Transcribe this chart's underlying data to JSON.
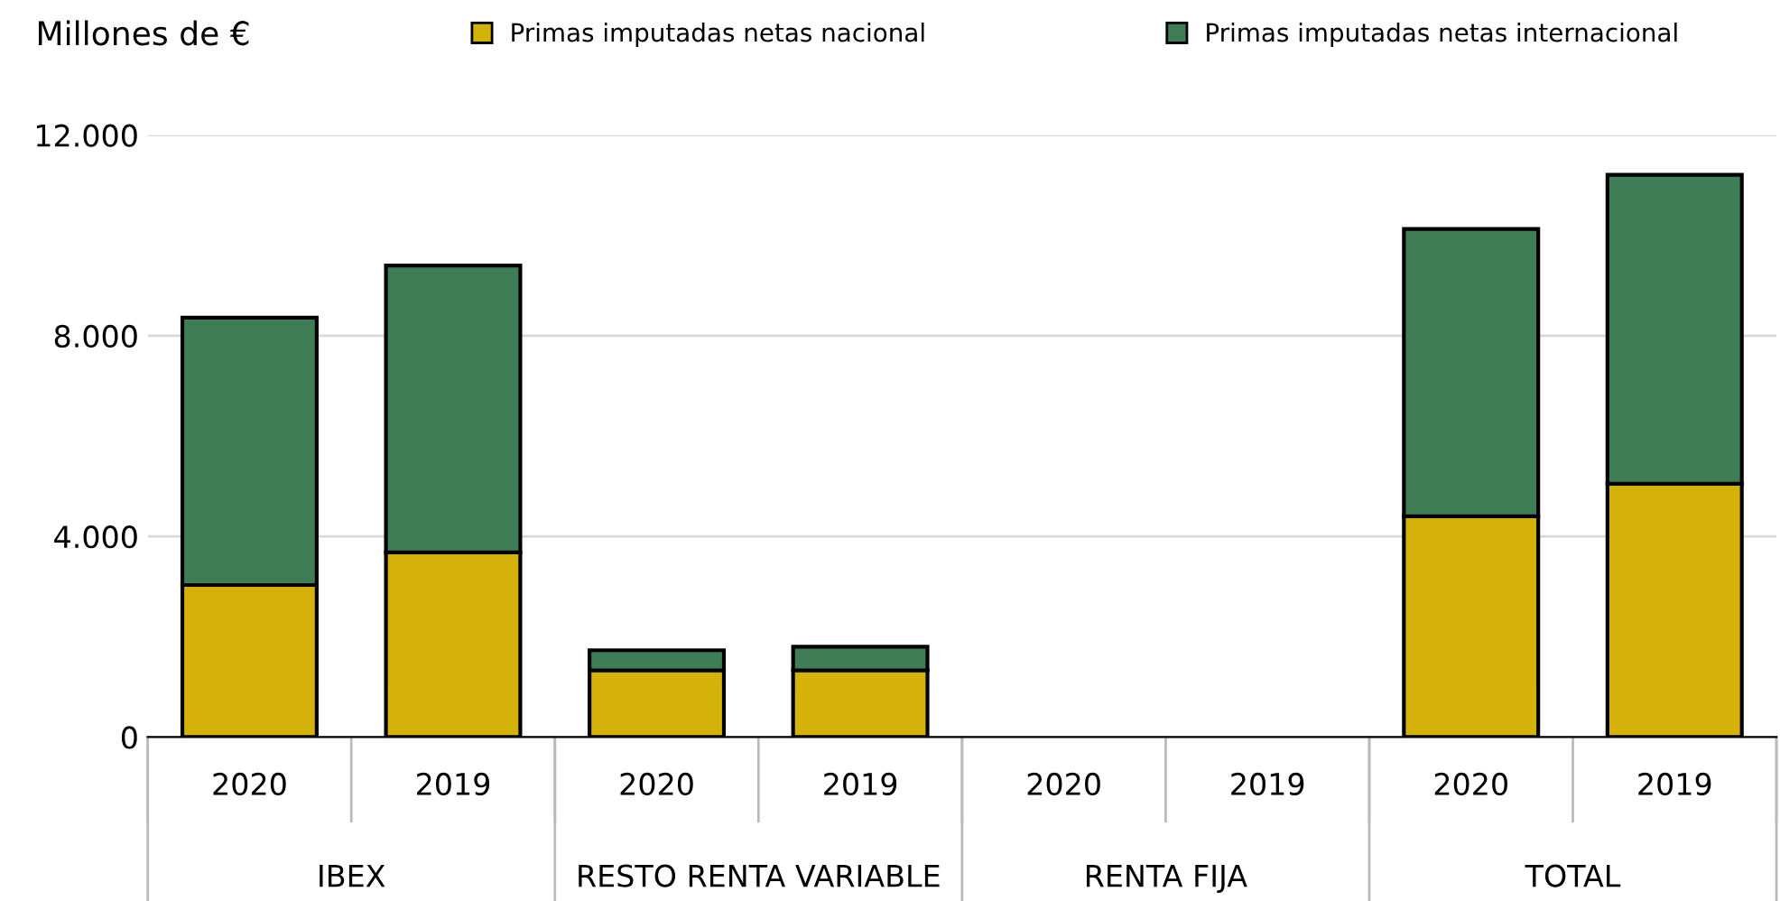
{
  "chart_data": {
    "type": "bar",
    "stacked": true,
    "ylabel": "Millones de €",
    "categories": [
      "2020",
      "2019",
      "2020",
      "2019",
      "2020",
      "2019",
      "2020",
      "2019"
    ],
    "series": [
      {
        "name": "Primas imputadas netas nacional",
        "color": "#d4b20a",
        "values": [
          3030,
          3680,
          1330,
          1330,
          null,
          null,
          4400,
          5050
        ]
      },
      {
        "name": "Primas imputadas netas internacional",
        "color": "#3e7d56",
        "values": [
          5330,
          5720,
          400,
          470,
          null,
          null,
          5730,
          6160
        ]
      }
    ],
    "annotations": [
      "IBEX",
      "RESTO RENTA VARIABLE",
      "RENTA FIJA",
      "TOTAL"
    ],
    "ylim": [
      0,
      12000
    ],
    "yticks": [
      0,
      {
        "value": 4000,
        "label": "4.000"
      },
      {
        "value": 8000,
        "label": "8.000"
      },
      {
        "value": 12000,
        "label": "12.000"
      }
    ],
    "grid": "y",
    "legend": "top"
  }
}
